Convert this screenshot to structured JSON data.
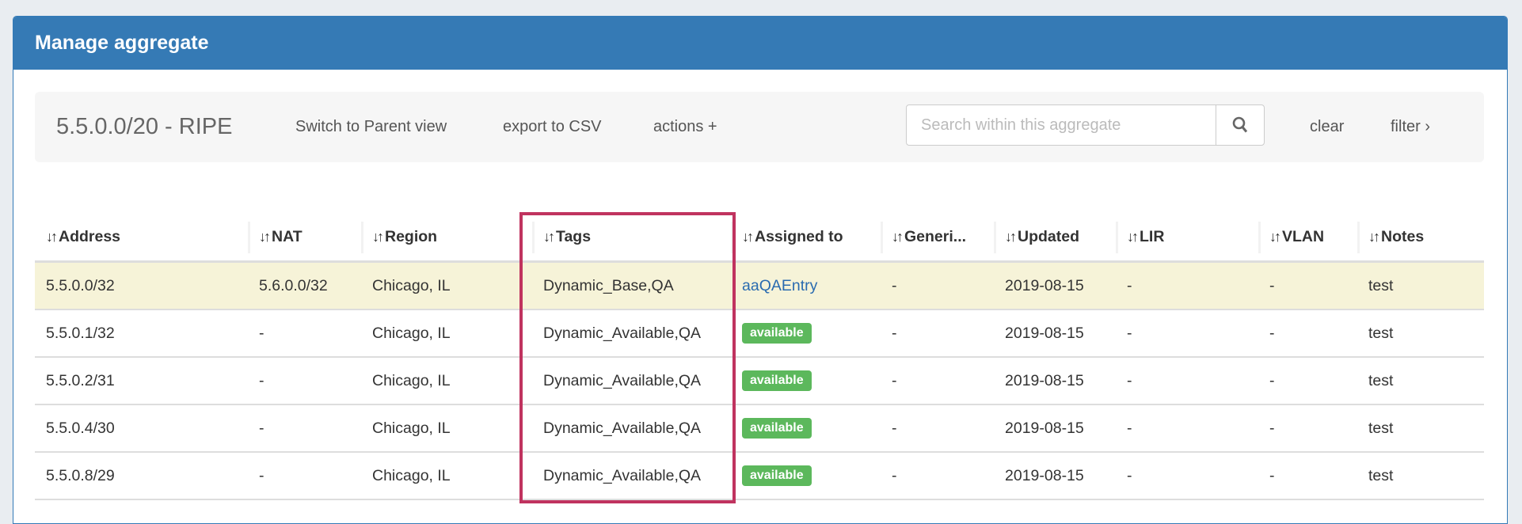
{
  "panel": {
    "title": "Manage aggregate"
  },
  "toolbar": {
    "title": "5.5.0.0/20 - RIPE",
    "switch_label": "Switch to Parent view",
    "export_label": "export to CSV",
    "actions_label": "actions +",
    "search_placeholder": "Search within this aggregate",
    "search_value": "",
    "clear_label": "clear",
    "filter_label": "filter ›"
  },
  "table": {
    "sort_icon": "↓↑",
    "headers": [
      "Address",
      "NAT",
      "Region",
      "Tags",
      "Assigned to",
      "Generi...",
      "Updated",
      "LIR",
      "VLAN",
      "Notes"
    ],
    "rows": [
      {
        "address": "5.5.0.0/32",
        "nat": "5.6.0.0/32",
        "region": "Chicago, IL",
        "tags": "Dynamic_Base,QA",
        "assigned": "aaQAEntry",
        "generic": "-",
        "updated": "2019-08-15",
        "lir": "-",
        "vlan": "-",
        "notes": "test"
      },
      {
        "address": "5.5.0.1/32",
        "nat": "-",
        "region": "Chicago, IL",
        "tags": "Dynamic_Available,QA",
        "assigned": "available",
        "generic": "-",
        "updated": "2019-08-15",
        "lir": "-",
        "vlan": "-",
        "notes": "test"
      },
      {
        "address": "5.5.0.2/31",
        "nat": "-",
        "region": "Chicago, IL",
        "tags": "Dynamic_Available,QA",
        "assigned": "available",
        "generic": "-",
        "updated": "2019-08-15",
        "lir": "-",
        "vlan": "-",
        "notes": "test"
      },
      {
        "address": "5.5.0.4/30",
        "nat": "-",
        "region": "Chicago, IL",
        "tags": "Dynamic_Available,QA",
        "assigned": "available",
        "generic": "-",
        "updated": "2019-08-15",
        "lir": "-",
        "vlan": "-",
        "notes": "test"
      },
      {
        "address": "5.5.0.8/29",
        "nat": "-",
        "region": "Chicago, IL",
        "tags": "Dynamic_Available,QA",
        "assigned": "available",
        "generic": "-",
        "updated": "2019-08-15",
        "lir": "-",
        "vlan": "-",
        "notes": "test"
      }
    ]
  },
  "colors": {
    "header": "#357ab5",
    "highlight_row": "#f6f3d8",
    "badge": "#5cb85c",
    "annotation_box": "#c0335f",
    "link": "#2a6bb0"
  }
}
